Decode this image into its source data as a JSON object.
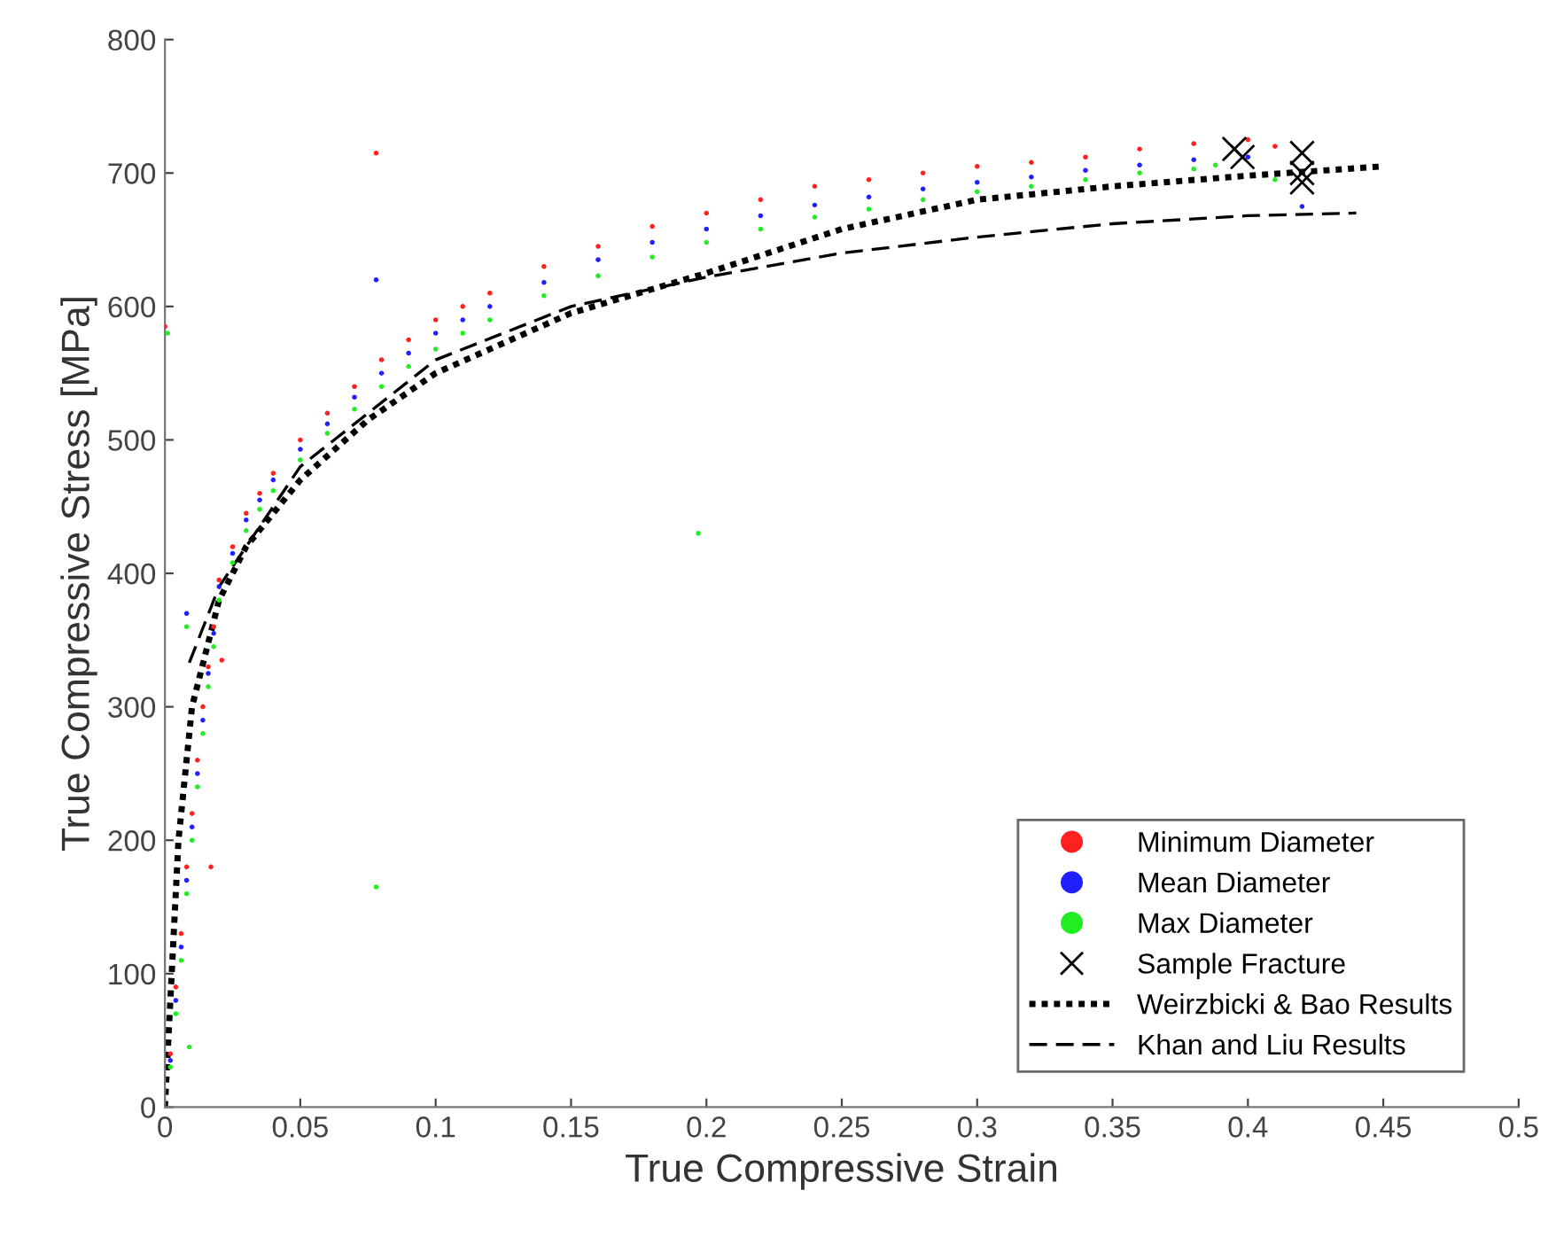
{
  "chart_data": {
    "type": "scatter",
    "xlabel": "True Compressive Strain",
    "ylabel": "True Compressive Stress [MPa]",
    "xlim": [
      0,
      0.5
    ],
    "ylim": [
      0,
      800
    ],
    "xticks": [
      0,
      0.05,
      0.1,
      0.15,
      0.2,
      0.25,
      0.3,
      0.35,
      0.4,
      0.45,
      0.5
    ],
    "yticks": [
      0,
      100,
      200,
      300,
      400,
      500,
      600,
      700,
      800
    ],
    "grid": false,
    "legend": "bottom right",
    "marker": "circle",
    "series": [
      {
        "name": "Minimum Diameter",
        "color": "#ff2020",
        "x": [
          0.002,
          0.004,
          0.006,
          0.008,
          0.01,
          0.012,
          0.014,
          0.016,
          0.018,
          0.02,
          0.025,
          0.03,
          0.035,
          0.04,
          0.05,
          0.06,
          0.07,
          0.08,
          0.09,
          0.1,
          0.11,
          0.12,
          0.14,
          0.16,
          0.18,
          0.2,
          0.22,
          0.24,
          0.26,
          0.28,
          0.3,
          0.32,
          0.34,
          0.36,
          0.38,
          0.4,
          0.41,
          0.078,
          0,
          0.017,
          0.021
        ],
        "values": [
          40,
          90,
          130,
          180,
          220,
          260,
          300,
          330,
          360,
          395,
          420,
          445,
          460,
          475,
          500,
          520,
          540,
          560,
          575,
          590,
          600,
          610,
          630,
          645,
          660,
          670,
          680,
          690,
          695,
          700,
          705,
          708,
          712,
          718,
          722,
          725,
          720,
          715,
          585,
          180,
          335
        ]
      },
      {
        "name": "Mean Diameter",
        "color": "#2020ff",
        "x": [
          0.002,
          0.004,
          0.006,
          0.008,
          0.01,
          0.012,
          0.014,
          0.016,
          0.018,
          0.02,
          0.025,
          0.03,
          0.035,
          0.04,
          0.05,
          0.06,
          0.07,
          0.08,
          0.09,
          0.1,
          0.11,
          0.12,
          0.14,
          0.16,
          0.18,
          0.2,
          0.22,
          0.24,
          0.26,
          0.28,
          0.3,
          0.32,
          0.34,
          0.36,
          0.38,
          0.4,
          0.42,
          0.078,
          0.008
        ],
        "values": [
          35,
          80,
          120,
          170,
          210,
          250,
          290,
          325,
          355,
          390,
          415,
          440,
          455,
          470,
          493,
          512,
          532,
          550,
          565,
          580,
          590,
          600,
          618,
          635,
          648,
          658,
          668,
          676,
          682,
          688,
          693,
          697,
          702,
          706,
          710,
          712,
          675,
          620,
          370
        ]
      },
      {
        "name": "Max Diameter",
        "color": "#20ee20",
        "x": [
          0.002,
          0.004,
          0.006,
          0.008,
          0.01,
          0.012,
          0.014,
          0.016,
          0.018,
          0.02,
          0.025,
          0.03,
          0.035,
          0.04,
          0.05,
          0.06,
          0.07,
          0.08,
          0.09,
          0.1,
          0.11,
          0.12,
          0.14,
          0.16,
          0.18,
          0.2,
          0.22,
          0.24,
          0.26,
          0.28,
          0.3,
          0.32,
          0.34,
          0.36,
          0.38,
          0.388,
          0.41,
          0.078,
          0.197,
          0.001,
          0.008,
          0.009
        ],
        "values": [
          30,
          70,
          110,
          160,
          200,
          240,
          280,
          315,
          345,
          380,
          408,
          432,
          448,
          462,
          485,
          505,
          523,
          540,
          555,
          568,
          580,
          590,
          608,
          623,
          637,
          648,
          658,
          667,
          673,
          680,
          686,
          690,
          695,
          700,
          703,
          706,
          695,
          165,
          430,
          580,
          360,
          45
        ]
      },
      {
        "name": "Sample Fracture",
        "color": "#000000",
        "marker": "cross",
        "x": [
          0.395,
          0.398,
          0.42,
          0.42,
          0.42
        ],
        "values": [
          718,
          712,
          715,
          700,
          693
        ]
      },
      {
        "name": "Weirzbicki & Bao Results",
        "type": "line",
        "line_style": "dotted",
        "marker": "none",
        "color": "#000000",
        "x": [
          0,
          0.005,
          0.01,
          0.02,
          0.03,
          0.05,
          0.075,
          0.1,
          0.15,
          0.2,
          0.25,
          0.3,
          0.35,
          0.4,
          0.45
        ],
        "values": [
          0,
          200,
          300,
          380,
          420,
          470,
          515,
          550,
          595,
          625,
          658,
          680,
          690,
          698,
          705
        ]
      },
      {
        "name": "Khan and Liu Results",
        "type": "line",
        "line_style": "dashed",
        "marker": "none",
        "color": "#000000",
        "x": [
          0.009,
          0.02,
          0.05,
          0.1,
          0.15,
          0.2,
          0.25,
          0.3,
          0.35,
          0.4,
          0.44
        ],
        "values": [
          333,
          390,
          480,
          560,
          600,
          622,
          640,
          652,
          662,
          668,
          670
        ]
      }
    ]
  }
}
